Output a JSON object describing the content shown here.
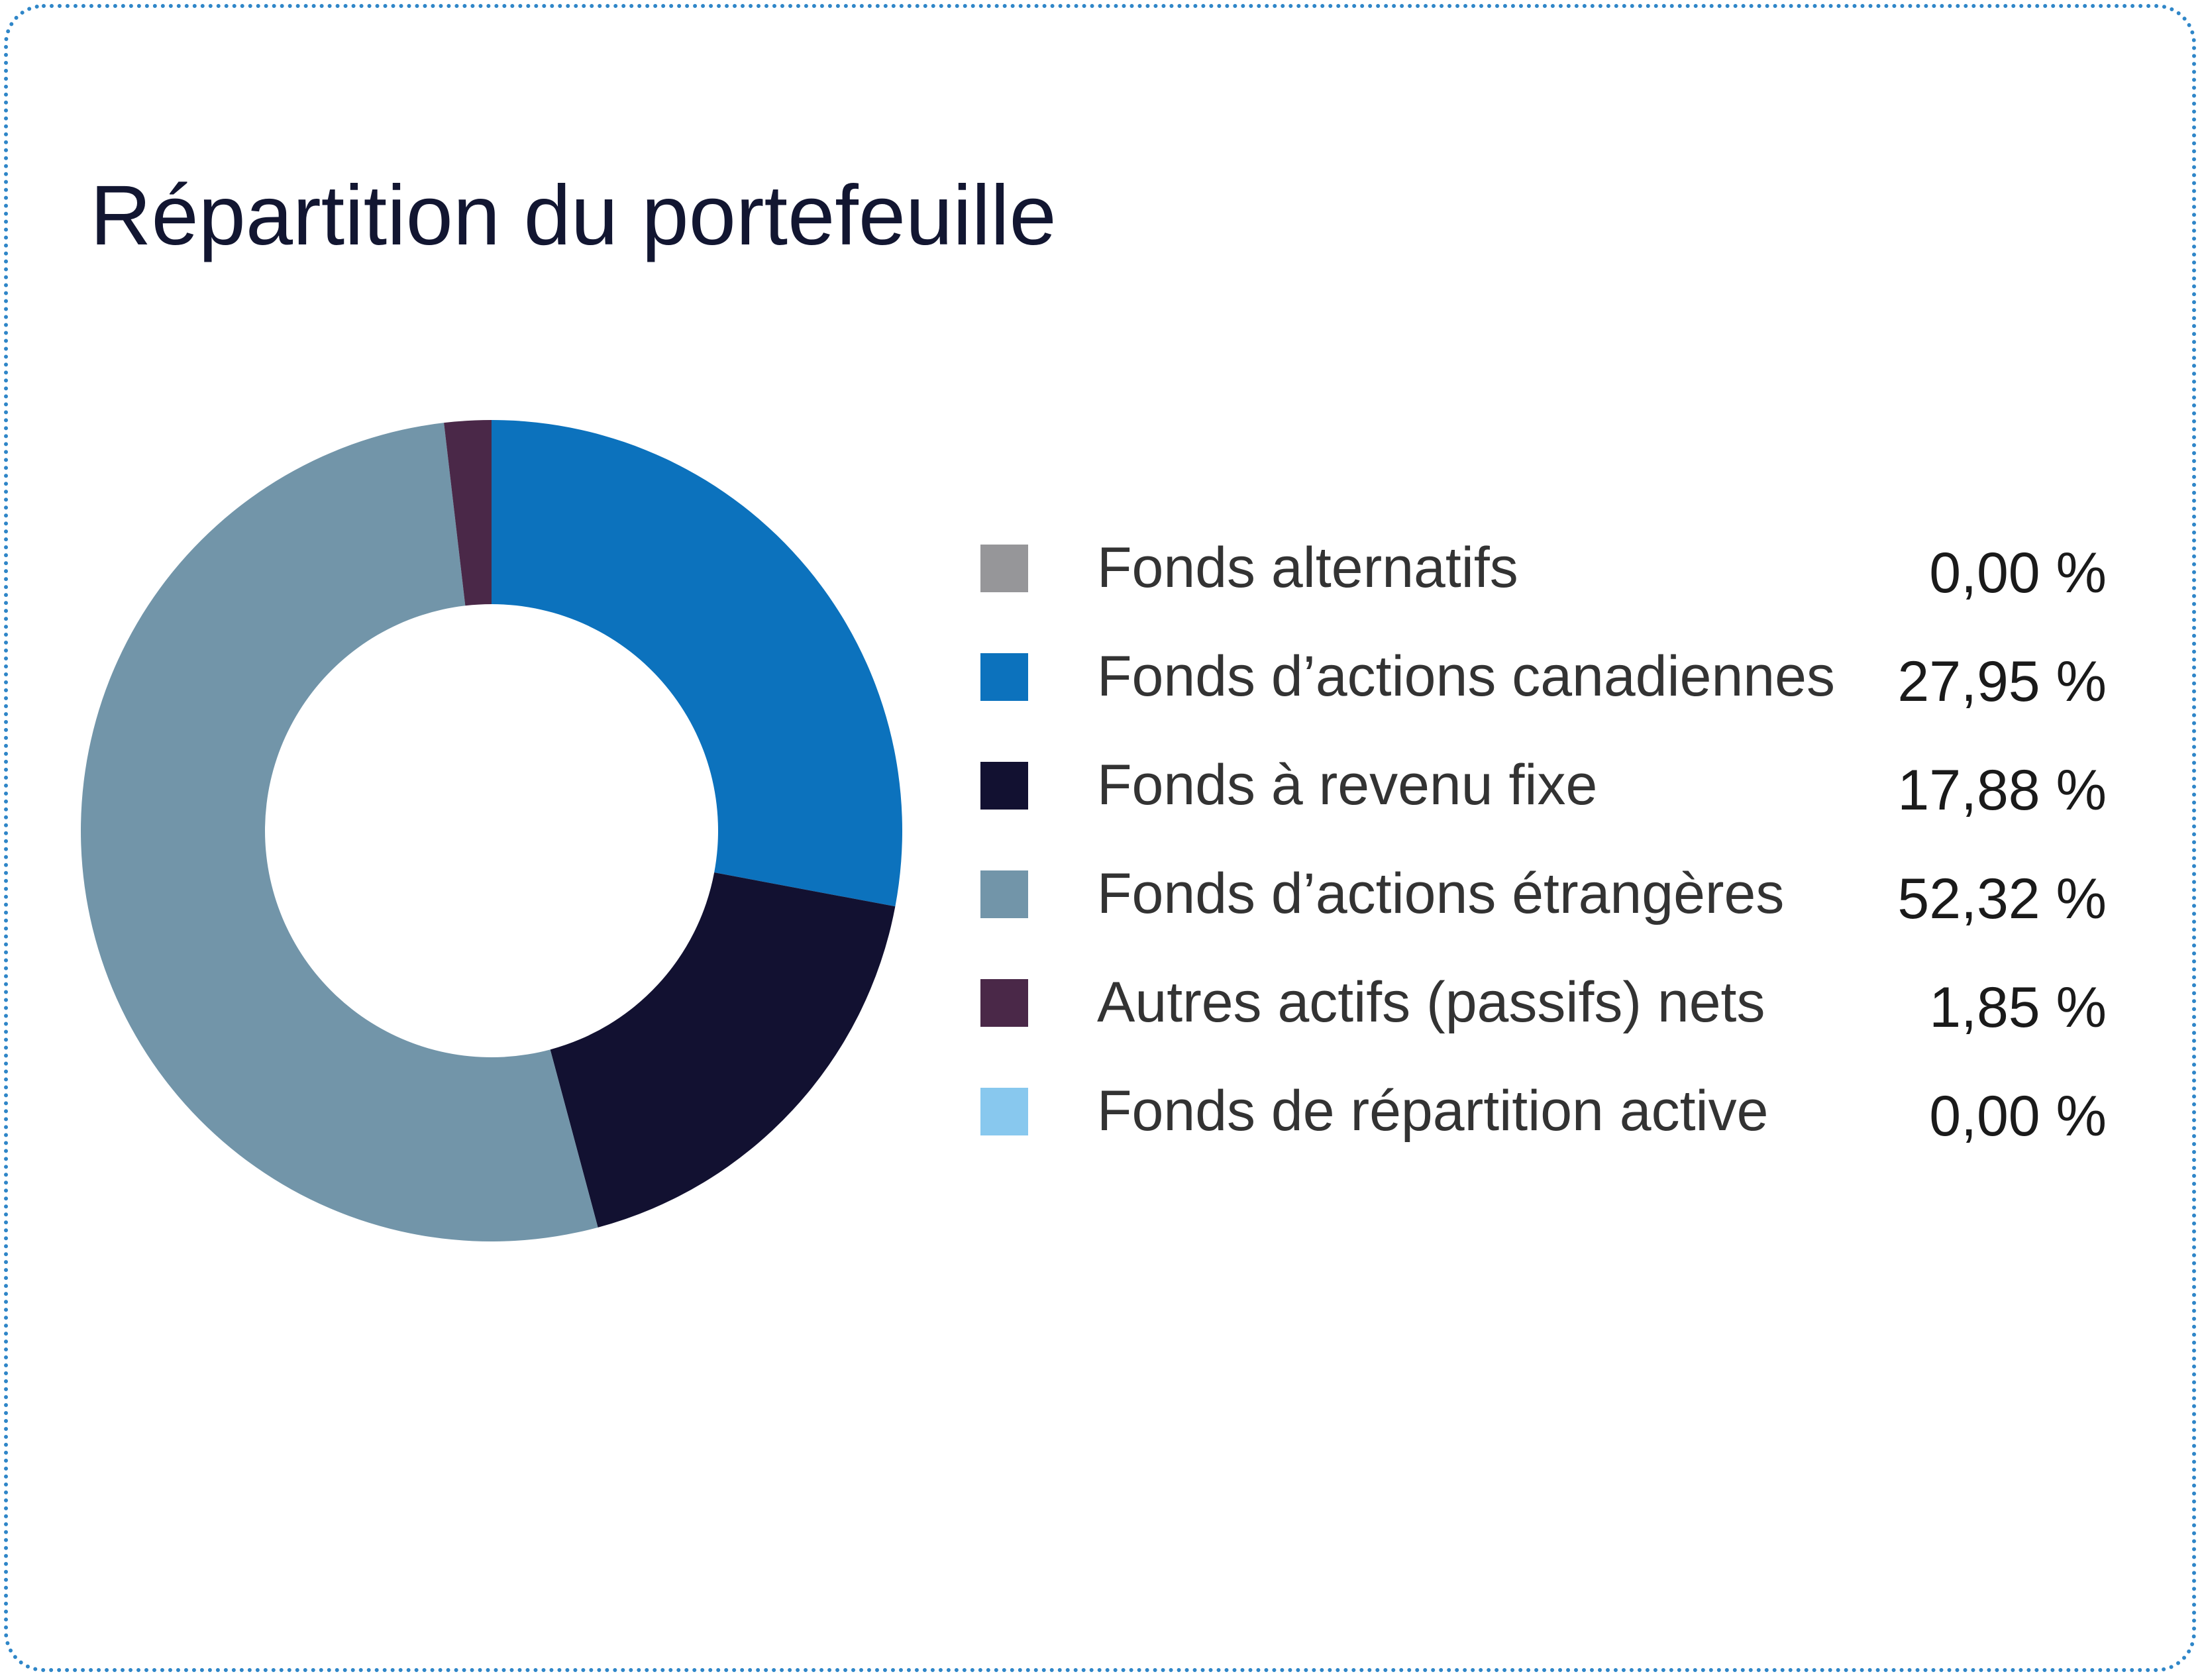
{
  "chart_data": {
    "type": "pie",
    "title": "Répartition du portefeuille",
    "legend_position": "right",
    "slices": [
      {
        "label": "Fonds alternatifs",
        "value": 0.0,
        "value_label": "0,00 %",
        "color": "#969699"
      },
      {
        "label": "Fonds d’actions canadiennes",
        "value": 27.95,
        "value_label": "27,95 %",
        "color": "#0c72bd"
      },
      {
        "label": "Fonds à revenu fixe",
        "value": 17.88,
        "value_label": "17,88 %",
        "color": "#121131"
      },
      {
        "label": "Fonds d’actions étrangères",
        "value": 52.32,
        "value_label": "52,32 %",
        "color": "#7295a9"
      },
      {
        "label": "Autres actifs (passifs) nets",
        "value": 1.85,
        "value_label": "1,85 %",
        "color": "#4a2848"
      },
      {
        "label": "Fonds de répartition active",
        "value": 0.0,
        "value_label": "0,00 %",
        "color": "#88c8ee"
      }
    ]
  }
}
